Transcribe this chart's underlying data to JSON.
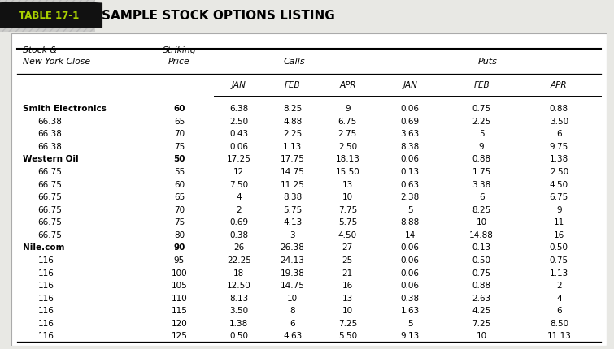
{
  "title": "SAMPLE STOCK OPTIONS LISTING",
  "table_label": "TABLE 17-1",
  "rows": [
    [
      "Smith Electronics",
      "60",
      "6.38",
      "8.25",
      "9",
      "0.06",
      "0.75",
      "0.88"
    ],
    [
      "66.38",
      "65",
      "2.50",
      "4.88",
      "6.75",
      "0.69",
      "2.25",
      "3.50"
    ],
    [
      "66.38",
      "70",
      "0.43",
      "2.25",
      "2.75",
      "3.63",
      "5",
      "6"
    ],
    [
      "66.38",
      "75",
      "0.06",
      "1.13",
      "2.50",
      "8.38",
      "9",
      "9.75"
    ],
    [
      "Western Oil",
      "50",
      "17.25",
      "17.75",
      "18.13",
      "0.06",
      "0.88",
      "1.38"
    ],
    [
      "66.75",
      "55",
      "12",
      "14.75",
      "15.50",
      "0.13",
      "1.75",
      "2.50"
    ],
    [
      "66.75",
      "60",
      "7.50",
      "11.25",
      "13",
      "0.63",
      "3.38",
      "4.50"
    ],
    [
      "66.75",
      "65",
      "4",
      "8.38",
      "10",
      "2.38",
      "6",
      "6.75"
    ],
    [
      "66.75",
      "70",
      "2",
      "5.75",
      "7.75",
      "5",
      "8.25",
      "9"
    ],
    [
      "66.75",
      "75",
      "0.69",
      "4.13",
      "5.75",
      "8.88",
      "10",
      "11"
    ],
    [
      "66.75",
      "80",
      "0.38",
      "3",
      "4.50",
      "14",
      "14.88",
      "16"
    ],
    [
      "Nile.com",
      "90",
      "26",
      "26.38",
      "27",
      "0.06",
      "0.13",
      "0.50"
    ],
    [
      "116",
      "95",
      "22.25",
      "24.13",
      "25",
      "0.06",
      "0.50",
      "0.75"
    ],
    [
      "116",
      "100",
      "18",
      "19.38",
      "21",
      "0.06",
      "0.75",
      "1.13"
    ],
    [
      "116",
      "105",
      "12.50",
      "14.75",
      "16",
      "0.06",
      "0.88",
      "2"
    ],
    [
      "116",
      "110",
      "8.13",
      "10",
      "13",
      "0.38",
      "2.63",
      "4"
    ],
    [
      "116",
      "115",
      "3.50",
      "8",
      "10",
      "1.63",
      "4.25",
      "6"
    ],
    [
      "116",
      "120",
      "1.38",
      "6",
      "7.25",
      "5",
      "7.25",
      "8.50"
    ],
    [
      "116",
      "125",
      "0.50",
      "4.63",
      "5.50",
      "9.13",
      "10",
      "11.13"
    ]
  ],
  "bold_rows": [
    0,
    4,
    11
  ],
  "indent_rows": [
    1,
    2,
    3,
    5,
    6,
    7,
    8,
    9,
    10,
    12,
    13,
    14,
    15,
    16,
    17,
    18
  ],
  "bg_color": "#e8e8e4",
  "title_bar_color": "#d8d8d4",
  "badge_bg": "#111111",
  "badge_text_color": "#a8d000",
  "table_bg": "#ffffff",
  "border_color": "#aaaaaa"
}
